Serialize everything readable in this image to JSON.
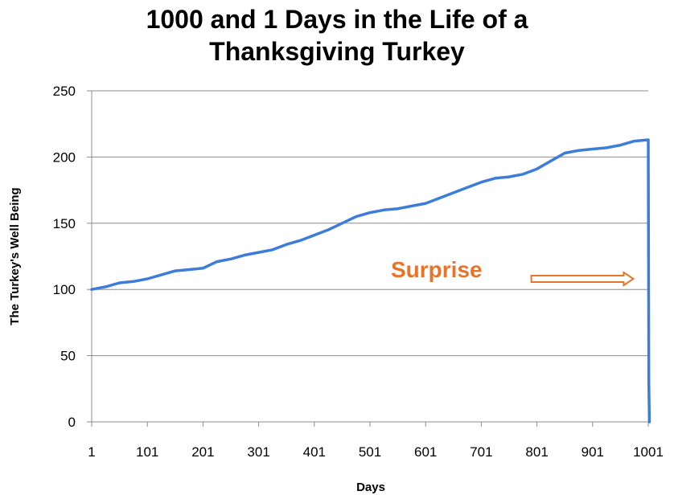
{
  "title_lines": [
    "1000 and 1 Days in the Life of a",
    "Thanksgiving Turkey"
  ],
  "chart_data": {
    "type": "line",
    "title": "1000 and 1 Days in the Life of a Thanksgiving Turkey",
    "xlabel": "Days",
    "ylabel": "The Turkey's Well Being",
    "xlim": [
      1,
      1001
    ],
    "ylim": [
      0,
      250
    ],
    "x_ticks": [
      1,
      101,
      201,
      301,
      401,
      501,
      601,
      701,
      801,
      901,
      1001
    ],
    "x_tick_labels": [
      "1",
      "101",
      "201",
      "301",
      "401",
      "501",
      "601",
      "701",
      "801",
      "901",
      "1001"
    ],
    "y_ticks": [
      0,
      50,
      100,
      150,
      200,
      250
    ],
    "y_tick_labels": [
      "0",
      "50",
      "100",
      "150",
      "200",
      "250"
    ],
    "grid": {
      "horizontal": true,
      "vertical": false
    },
    "series": [
      {
        "color": "#3c7dd9",
        "x": [
          1,
          26,
          51,
          76,
          101,
          126,
          151,
          176,
          201,
          226,
          251,
          276,
          301,
          326,
          351,
          376,
          401,
          426,
          451,
          476,
          501,
          526,
          551,
          576,
          601,
          626,
          651,
          676,
          701,
          726,
          751,
          776,
          801,
          826,
          851,
          876,
          901,
          926,
          951,
          976,
          1001,
          1002,
          1003
        ],
        "y": [
          100,
          102,
          105,
          106,
          108,
          111,
          114,
          115,
          116,
          121,
          123,
          126,
          128,
          130,
          134,
          137,
          141,
          145,
          150,
          155,
          158,
          160,
          161,
          163,
          165,
          169,
          173,
          177,
          181,
          184,
          185,
          187,
          191,
          197,
          203,
          205,
          206,
          207,
          209,
          212,
          213,
          30,
          0
        ]
      }
    ],
    "annotation": {
      "text": "Surprise",
      "color": "#e8742c",
      "x": 501,
      "y": 108
    },
    "arrow": {
      "color": "#e8742c",
      "from": [
        840,
        108
      ],
      "to": [
        980,
        108
      ]
    }
  }
}
